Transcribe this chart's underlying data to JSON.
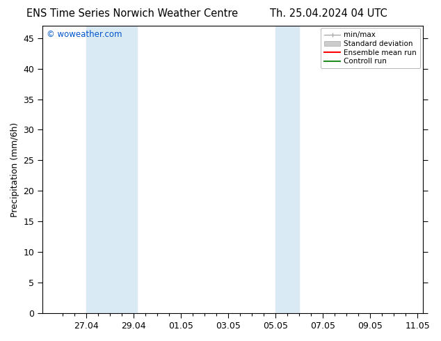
{
  "title_left": "ENS Time Series Norwich Weather Centre",
  "title_right": "Th. 25.04.2024 04 UTC",
  "ylabel": "Precipitation (mm/6h)",
  "watermark": "© woweather.com",
  "watermark_color": "#0055cc",
  "ylim": [
    0,
    47
  ],
  "yticks": [
    0,
    5,
    10,
    15,
    20,
    25,
    30,
    35,
    40,
    45
  ],
  "xtick_labels": [
    "27.04",
    "29.04",
    "01.05",
    "03.05",
    "05.05",
    "07.05",
    "09.05",
    "11.05"
  ],
  "band_color": "#daeaf5",
  "bg_color": "#ffffff",
  "tick_color": "#000000",
  "font_size": 9,
  "title_font_size": 10.5,
  "legend_labels": [
    "min/max",
    "Standard deviation",
    "Ensemble mean run",
    "Controll run"
  ],
  "legend_colors": [
    "#999999",
    "#cccccc",
    "#ff0000",
    "#008000"
  ]
}
